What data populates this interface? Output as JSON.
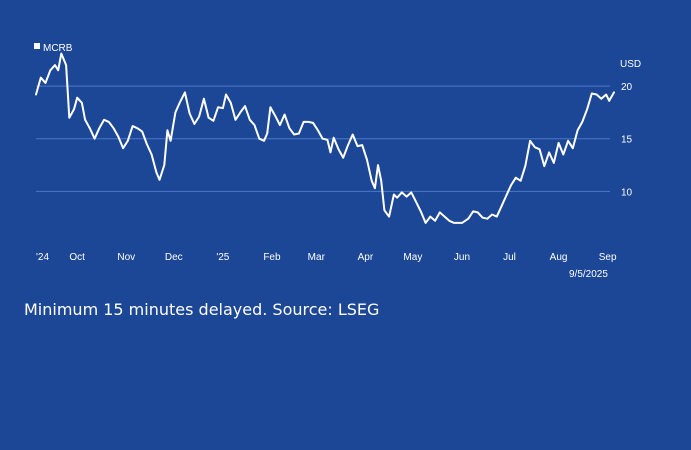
{
  "chart_data": {
    "type": "line",
    "title": "",
    "legend": {
      "entries": [
        "MCRB"
      ],
      "placement": "top-left"
    },
    "series": [
      {
        "name": "MCRB",
        "color": "#ffffff",
        "points": [
          [
            "2024-09-05",
            19.2
          ],
          [
            "2024-09-08",
            20.8
          ],
          [
            "2024-09-11",
            20.3
          ],
          [
            "2024-09-14",
            21.5
          ],
          [
            "2024-09-17",
            22.0
          ],
          [
            "2024-09-19",
            21.5
          ],
          [
            "2024-09-21",
            23.1
          ],
          [
            "2024-09-24",
            22.0
          ],
          [
            "2024-09-26",
            17.0
          ],
          [
            "2024-09-29",
            17.8
          ],
          [
            "2024-10-01",
            18.9
          ],
          [
            "2024-10-04",
            18.4
          ],
          [
            "2024-10-06",
            16.8
          ],
          [
            "2024-10-09",
            16.0
          ],
          [
            "2024-10-12",
            15.0
          ],
          [
            "2024-10-15",
            16.0
          ],
          [
            "2024-10-18",
            16.8
          ],
          [
            "2024-10-21",
            16.6
          ],
          [
            "2024-10-24",
            16.0
          ],
          [
            "2024-10-27",
            15.2
          ],
          [
            "2024-10-30",
            14.1
          ],
          [
            "2024-11-02",
            14.8
          ],
          [
            "2024-11-05",
            16.2
          ],
          [
            "2024-11-08",
            16.0
          ],
          [
            "2024-11-11",
            15.7
          ],
          [
            "2024-11-14",
            14.5
          ],
          [
            "2024-11-17",
            13.5
          ],
          [
            "2024-11-20",
            11.8
          ],
          [
            "2024-11-22",
            11.1
          ],
          [
            "2024-11-25",
            12.5
          ],
          [
            "2024-11-27",
            15.8
          ],
          [
            "2024-11-29",
            14.8
          ],
          [
            "2024-12-02",
            17.5
          ],
          [
            "2024-12-05",
            18.5
          ],
          [
            "2024-12-08",
            19.4
          ],
          [
            "2024-12-11",
            17.4
          ],
          [
            "2024-12-14",
            16.4
          ],
          [
            "2024-12-17",
            17.1
          ],
          [
            "2024-12-20",
            18.8
          ],
          [
            "2024-12-23",
            17.0
          ],
          [
            "2024-12-26",
            16.7
          ],
          [
            "2024-12-29",
            18.0
          ],
          [
            "2025-01-01",
            17.9
          ],
          [
            "2025-01-03",
            19.2
          ],
          [
            "2025-01-06",
            18.4
          ],
          [
            "2025-01-09",
            16.8
          ],
          [
            "2025-01-12",
            17.5
          ],
          [
            "2025-01-15",
            18.1
          ],
          [
            "2025-01-18",
            16.8
          ],
          [
            "2025-01-21",
            16.3
          ],
          [
            "2025-01-24",
            15.0
          ],
          [
            "2025-01-27",
            14.8
          ],
          [
            "2025-01-29",
            15.5
          ],
          [
            "2025-01-31",
            18.0
          ],
          [
            "2025-02-03",
            17.2
          ],
          [
            "2025-02-06",
            16.3
          ],
          [
            "2025-02-09",
            17.3
          ],
          [
            "2025-02-12",
            16.0
          ],
          [
            "2025-02-15",
            15.4
          ],
          [
            "2025-02-18",
            15.5
          ],
          [
            "2025-02-21",
            16.6
          ],
          [
            "2025-02-24",
            16.6
          ],
          [
            "2025-02-27",
            16.5
          ],
          [
            "2025-03-02",
            15.8
          ],
          [
            "2025-03-05",
            15.0
          ],
          [
            "2025-03-08",
            14.9
          ],
          [
            "2025-03-10",
            13.7
          ],
          [
            "2025-03-12",
            15.1
          ],
          [
            "2025-03-15",
            14.0
          ],
          [
            "2025-03-18",
            13.2
          ],
          [
            "2025-03-21",
            14.4
          ],
          [
            "2025-03-24",
            15.4
          ],
          [
            "2025-03-27",
            14.3
          ],
          [
            "2025-03-30",
            14.4
          ],
          [
            "2025-04-02",
            13.0
          ],
          [
            "2025-04-05",
            11.0
          ],
          [
            "2025-04-07",
            10.3
          ],
          [
            "2025-04-09",
            12.5
          ],
          [
            "2025-04-11",
            11.0
          ],
          [
            "2025-04-13",
            8.2
          ],
          [
            "2025-04-16",
            7.6
          ],
          [
            "2025-04-19",
            9.7
          ],
          [
            "2025-04-21",
            9.4
          ],
          [
            "2025-04-24",
            9.9
          ],
          [
            "2025-04-27",
            9.5
          ],
          [
            "2025-04-30",
            9.9
          ],
          [
            "2025-05-03",
            9.0
          ],
          [
            "2025-05-06",
            8.1
          ],
          [
            "2025-05-09",
            7.0
          ],
          [
            "2025-05-12",
            7.6
          ],
          [
            "2025-05-15",
            7.2
          ],
          [
            "2025-05-18",
            8.0
          ],
          [
            "2025-05-21",
            7.6
          ],
          [
            "2025-05-24",
            7.2
          ],
          [
            "2025-05-27",
            7.0
          ],
          [
            "2025-06-01",
            7.0
          ],
          [
            "2025-06-05",
            7.4
          ],
          [
            "2025-06-08",
            8.1
          ],
          [
            "2025-06-11",
            8.0
          ],
          [
            "2025-06-14",
            7.5
          ],
          [
            "2025-06-17",
            7.4
          ],
          [
            "2025-06-20",
            7.8
          ],
          [
            "2025-06-23",
            7.6
          ],
          [
            "2025-06-26",
            8.6
          ],
          [
            "2025-06-29",
            9.6
          ],
          [
            "2025-07-02",
            10.6
          ],
          [
            "2025-07-05",
            11.3
          ],
          [
            "2025-07-08",
            11.0
          ],
          [
            "2025-07-11",
            12.4
          ],
          [
            "2025-07-14",
            14.8
          ],
          [
            "2025-07-17",
            14.2
          ],
          [
            "2025-07-20",
            14.0
          ],
          [
            "2025-07-23",
            12.4
          ],
          [
            "2025-07-26",
            13.7
          ],
          [
            "2025-07-29",
            12.7
          ],
          [
            "2025-08-01",
            14.6
          ],
          [
            "2025-08-04",
            13.5
          ],
          [
            "2025-08-07",
            14.8
          ],
          [
            "2025-08-10",
            14.1
          ],
          [
            "2025-08-13",
            15.8
          ],
          [
            "2025-08-16",
            16.6
          ],
          [
            "2025-08-19",
            17.8
          ],
          [
            "2025-08-22",
            19.3
          ],
          [
            "2025-08-25",
            19.2
          ],
          [
            "2025-08-28",
            18.8
          ],
          [
            "2025-08-31",
            19.2
          ],
          [
            "2025-09-02",
            18.6
          ],
          [
            "2025-09-05",
            19.4
          ]
        ]
      }
    ],
    "x_axis": {
      "range": [
        "2024-09-05",
        "2025-09-05"
      ],
      "ticks": [
        {
          "label": "'24",
          "date": "2024-09-05"
        },
        {
          "label": "Oct",
          "date": "2024-10-01"
        },
        {
          "label": "Nov",
          "date": "2024-11-01"
        },
        {
          "label": "Dec",
          "date": "2024-12-01"
        },
        {
          "label": "'25",
          "date": "2025-01-01"
        },
        {
          "label": "Feb",
          "date": "2025-02-01"
        },
        {
          "label": "Mar",
          "date": "2025-03-01"
        },
        {
          "label": "Apr",
          "date": "2025-04-01"
        },
        {
          "label": "May",
          "date": "2025-05-01"
        },
        {
          "label": "Jun",
          "date": "2025-06-01"
        },
        {
          "label": "Jul",
          "date": "2025-07-01"
        },
        {
          "label": "Aug",
          "date": "2025-08-01"
        },
        {
          "label": "Sep",
          "date": "2025-09-01"
        }
      ],
      "end_label": "9/5/2025"
    },
    "y_axis": {
      "unit_label": "USD",
      "position": "right",
      "ylim": [
        5,
        24
      ],
      "ticks": [
        10,
        15,
        20
      ],
      "grid": true
    }
  },
  "colors": {
    "background": "#1c4796",
    "line": "#ffffff",
    "grid": "#4a78c8"
  },
  "footer": {
    "source_note": "Minimum 15 minutes delayed. Source: LSEG"
  }
}
